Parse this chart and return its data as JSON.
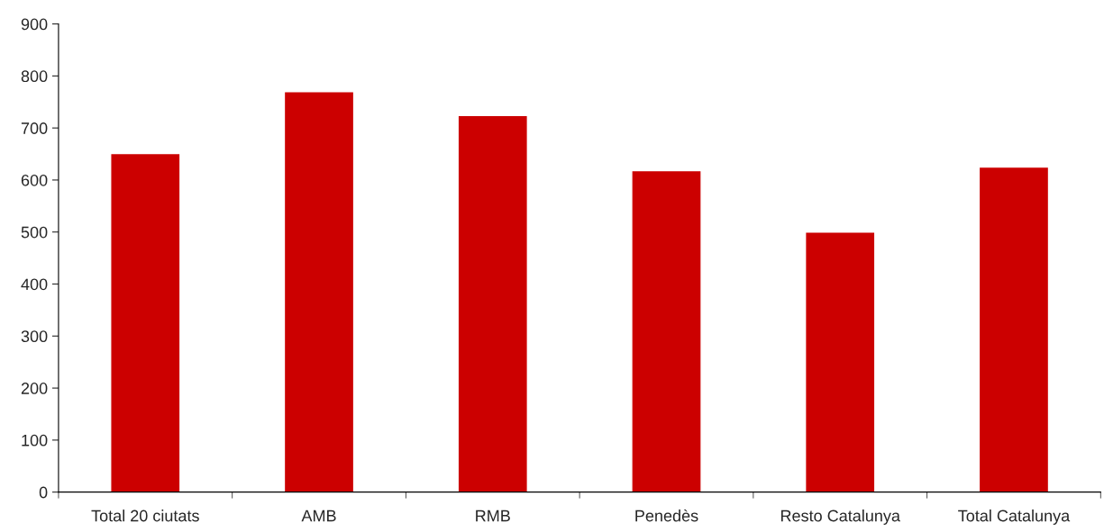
{
  "chart_data": {
    "type": "bar",
    "categories": [
      "Total 20 ciutats",
      "AMB",
      "RMB",
      "Penedès",
      "Resto Catalunya",
      "Total Catalunya"
    ],
    "values": [
      651,
      770,
      724,
      618,
      500,
      625
    ],
    "color": "#cc0000",
    "ylim": [
      0,
      900
    ],
    "yticks": [
      0,
      100,
      200,
      300,
      400,
      500,
      600,
      700,
      800,
      900
    ],
    "grid": false,
    "legend": false
  }
}
